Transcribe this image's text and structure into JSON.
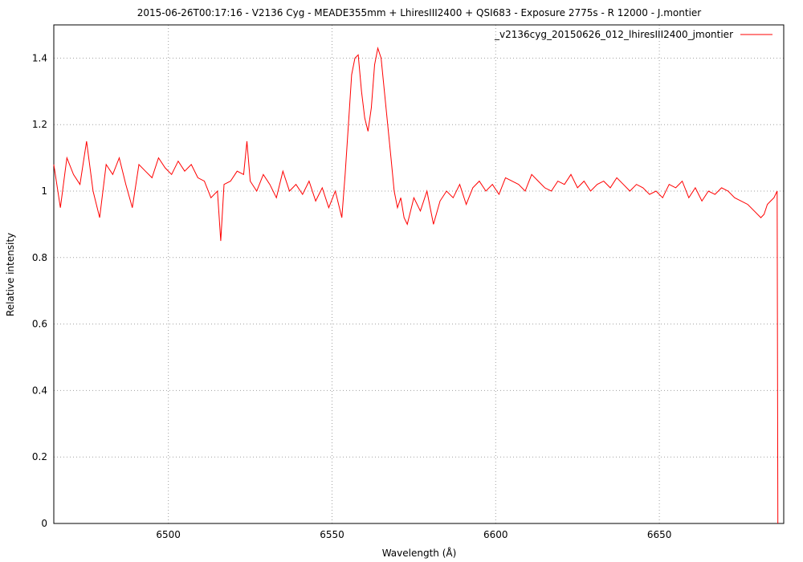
{
  "chart_data": {
    "type": "line",
    "title": "2015-06-26T00:17:16 - V2136 Cyg - MEADE355mm + LhiresIII2400 + QSI683 - Exposure 2775s - R 12000 - J.montier",
    "xlabel": "Wavelength (Å)",
    "ylabel": "Relative intensity",
    "xlim": [
      6465,
      6688
    ],
    "ylim": [
      0,
      1.5
    ],
    "x_ticks": [
      6500,
      6550,
      6600,
      6650
    ],
    "x_tick_labels": [
      "6500",
      "6550",
      "6600",
      "6650"
    ],
    "y_ticks": [
      0,
      0.2,
      0.4,
      0.6,
      0.8,
      1,
      1.2,
      1.4
    ],
    "y_tick_labels": [
      "0",
      "0.2",
      "0.4",
      "0.6",
      "0.8",
      "1",
      "1.2",
      "1.4"
    ],
    "grid": true,
    "legend_position": "top-right",
    "series": [
      {
        "name": "_v2136cyg_20150626_012_lhiresIII2400_jmontier",
        "color": "#ff0000",
        "x": [
          6465,
          6467,
          6469,
          6471,
          6473,
          6475,
          6477,
          6479,
          6481,
          6483,
          6485,
          6487,
          6489,
          6491,
          6493,
          6495,
          6497,
          6499,
          6501,
          6503,
          6505,
          6507,
          6509,
          6511,
          6513,
          6515,
          6516,
          6517,
          6519,
          6521,
          6523,
          6524,
          6525,
          6527,
          6529,
          6531,
          6533,
          6535,
          6537,
          6539,
          6541,
          6543,
          6545,
          6547,
          6549,
          6551,
          6553,
          6554,
          6555,
          6556,
          6557,
          6558,
          6559,
          6560,
          6561,
          6562,
          6563,
          6564,
          6565,
          6566,
          6567,
          6568,
          6569,
          6570,
          6571,
          6572,
          6573,
          6575,
          6577,
          6579,
          6581,
          6583,
          6585,
          6587,
          6589,
          6591,
          6593,
          6595,
          6597,
          6599,
          6601,
          6603,
          6605,
          6607,
          6609,
          6611,
          6613,
          6615,
          6617,
          6619,
          6621,
          6623,
          6625,
          6627,
          6629,
          6631,
          6633,
          6635,
          6637,
          6639,
          6641,
          6643,
          6645,
          6647,
          6649,
          6651,
          6653,
          6655,
          6657,
          6659,
          6661,
          6663,
          6665,
          6667,
          6669,
          6671,
          6673,
          6675,
          6677,
          6679,
          6681,
          6682,
          6683,
          6684,
          6685,
          6686,
          6686.2
        ],
        "y": [
          1.08,
          0.95,
          1.1,
          1.05,
          1.02,
          1.15,
          1.0,
          0.92,
          1.08,
          1.05,
          1.1,
          1.02,
          0.95,
          1.08,
          1.06,
          1.04,
          1.1,
          1.07,
          1.05,
          1.09,
          1.06,
          1.08,
          1.04,
          1.03,
          0.98,
          1.0,
          0.85,
          1.02,
          1.03,
          1.06,
          1.05,
          1.15,
          1.03,
          1.0,
          1.05,
          1.02,
          0.98,
          1.06,
          1.0,
          1.02,
          0.99,
          1.03,
          0.97,
          1.01,
          0.95,
          1.0,
          0.92,
          1.05,
          1.2,
          1.35,
          1.4,
          1.41,
          1.3,
          1.22,
          1.18,
          1.25,
          1.38,
          1.43,
          1.4,
          1.3,
          1.2,
          1.1,
          1.0,
          0.95,
          0.98,
          0.92,
          0.9,
          0.98,
          0.94,
          1.0,
          0.9,
          0.97,
          1.0,
          0.98,
          1.02,
          0.96,
          1.01,
          1.03,
          1.0,
          1.02,
          0.99,
          1.04,
          1.03,
          1.02,
          1.0,
          1.05,
          1.03,
          1.01,
          1.0,
          1.03,
          1.02,
          1.05,
          1.01,
          1.03,
          1.0,
          1.02,
          1.03,
          1.01,
          1.04,
          1.02,
          1.0,
          1.02,
          1.01,
          0.99,
          1.0,
          0.98,
          1.02,
          1.01,
          1.03,
          0.98,
          1.01,
          0.97,
          1.0,
          0.99,
          1.01,
          1.0,
          0.98,
          0.97,
          0.96,
          0.94,
          0.92,
          0.93,
          0.96,
          0.97,
          0.98,
          1.0,
          0.0
        ]
      }
    ]
  }
}
